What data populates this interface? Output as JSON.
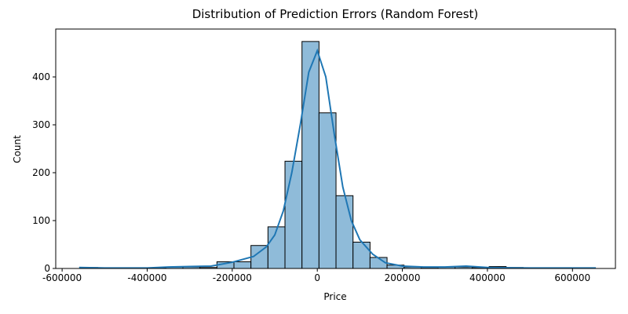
{
  "chart_data": {
    "type": "histogram",
    "title": "Distribution of Prediction Errors (Random Forest)",
    "x_label": "Price",
    "y_label": "Count",
    "bins": [
      -556000,
      -516000,
      -476000,
      -436000,
      -396000,
      -356000,
      -316000,
      -276000,
      -236000,
      -196000,
      -156000,
      -116000,
      -76000,
      -36000,
      4000,
      44000,
      84000,
      124000,
      164000,
      204000,
      244000,
      284000,
      324000,
      364000,
      404000,
      444000,
      484000,
      524000,
      564000,
      604000,
      644000
    ],
    "counts": [
      2,
      1,
      0,
      0,
      1,
      3,
      3,
      2,
      14,
      14,
      48,
      87,
      224,
      474,
      325,
      152,
      55,
      23,
      7,
      3,
      2,
      3,
      3,
      2,
      4,
      2,
      1,
      0,
      1,
      1
    ],
    "color": "#8fbbd9",
    "kde": {
      "color": "#1f77b4",
      "x": [
        -560000,
        -500000,
        -400000,
        -350000,
        -300000,
        -250000,
        -200000,
        -150000,
        -120000,
        -100000,
        -80000,
        -60000,
        -40000,
        -20000,
        0,
        20000,
        40000,
        60000,
        80000,
        100000,
        130000,
        160000,
        200000,
        250000,
        300000,
        350000,
        400000,
        500000,
        655000
      ],
      "values": [
        2,
        1,
        1,
        3,
        4,
        5,
        13,
        25,
        45,
        70,
        120,
        200,
        300,
        410,
        455,
        400,
        280,
        170,
        100,
        60,
        30,
        12,
        5,
        3,
        3,
        5,
        2,
        1,
        1
      ]
    },
    "xlim": [
      -615000,
      701000
    ],
    "ylim": [
      0,
      500
    ],
    "xticks": [
      -600000,
      -400000,
      -200000,
      0,
      200000,
      400000,
      600000
    ],
    "yticks": [
      0,
      100,
      200,
      300,
      400
    ]
  }
}
